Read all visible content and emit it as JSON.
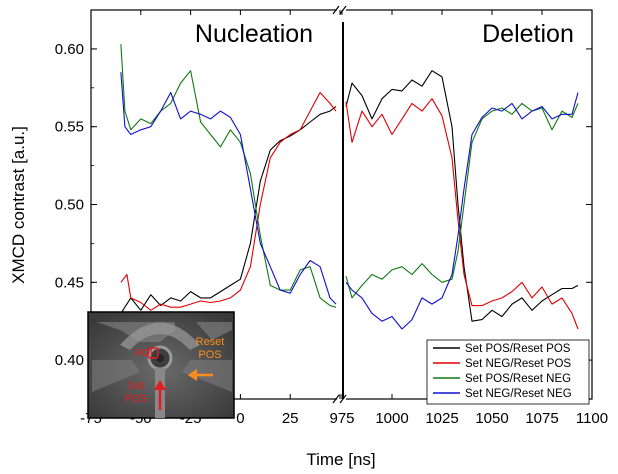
{
  "chart_data": {
    "type": "line",
    "xlabel": "Time [ns]",
    "ylabel": "XMCD contrast [a.u.]",
    "ylim": [
      0.375,
      0.625
    ],
    "y_ticks": [
      0.4,
      0.45,
      0.5,
      0.55,
      0.6
    ],
    "y_tick_labels": [
      "0.40",
      "0.45",
      "0.50",
      "0.55",
      "0.60"
    ],
    "axis_break": true,
    "panels": [
      {
        "label": "Nucleation",
        "xlim": [
          -75,
          50
        ],
        "x_ticks": [
          -75,
          -50,
          -25,
          0,
          25,
          50
        ],
        "x_tick_labels": [
          "-75",
          "-50",
          "-25",
          "0",
          "25",
          ""
        ]
      },
      {
        "label": "Deletion",
        "xlim": [
          975,
          1100
        ],
        "x_ticks": [
          975,
          1000,
          1025,
          1050,
          1075,
          1100
        ],
        "x_tick_labels": [
          "975",
          "1000",
          "1025",
          "1050",
          "1075",
          "1100"
        ]
      }
    ],
    "series": [
      {
        "name": "Set POS/Reset POS",
        "color": "#000000",
        "nucleation": {
          "x": [
            -60,
            -55,
            -50,
            -45,
            -40,
            -35,
            -30,
            -25,
            -20,
            -15,
            -10,
            -5,
            0,
            5,
            10,
            15,
            20,
            25,
            30,
            35,
            40,
            45,
            48
          ],
          "y": [
            0.43,
            0.44,
            0.432,
            0.442,
            0.435,
            0.44,
            0.438,
            0.444,
            0.44,
            0.44,
            0.444,
            0.448,
            0.452,
            0.475,
            0.515,
            0.535,
            0.541,
            0.544,
            0.548,
            0.553,
            0.558,
            0.56,
            0.563
          ]
        },
        "deletion": {
          "x": [
            977,
            980,
            985,
            990,
            995,
            1000,
            1005,
            1010,
            1015,
            1020,
            1025,
            1030,
            1033,
            1036,
            1040,
            1045,
            1050,
            1055,
            1060,
            1065,
            1070,
            1075,
            1080,
            1085,
            1090,
            1093
          ],
          "y": [
            0.563,
            0.578,
            0.57,
            0.555,
            0.568,
            0.574,
            0.573,
            0.58,
            0.576,
            0.586,
            0.582,
            0.55,
            0.5,
            0.46,
            0.425,
            0.426,
            0.432,
            0.428,
            0.436,
            0.44,
            0.432,
            0.438,
            0.442,
            0.446,
            0.446,
            0.448
          ]
        }
      },
      {
        "name": "Set NEG/Reset POS",
        "color": "#e00000",
        "nucleation": {
          "x": [
            -60,
            -57,
            -55,
            -50,
            -45,
            -40,
            -35,
            -30,
            -25,
            -20,
            -15,
            -10,
            -5,
            0,
            5,
            10,
            15,
            20,
            25,
            30,
            35,
            40,
            45,
            48
          ],
          "y": [
            0.45,
            0.455,
            0.44,
            0.437,
            0.432,
            0.436,
            0.434,
            0.434,
            0.436,
            0.438,
            0.437,
            0.438,
            0.44,
            0.445,
            0.46,
            0.5,
            0.53,
            0.54,
            0.545,
            0.548,
            0.56,
            0.572,
            0.565,
            0.56
          ]
        },
        "deletion": {
          "x": [
            977,
            980,
            985,
            990,
            995,
            1000,
            1005,
            1010,
            1015,
            1020,
            1025,
            1030,
            1033,
            1036,
            1040,
            1045,
            1050,
            1055,
            1060,
            1065,
            1070,
            1075,
            1080,
            1085,
            1090,
            1093
          ],
          "y": [
            0.566,
            0.54,
            0.56,
            0.55,
            0.558,
            0.545,
            0.555,
            0.565,
            0.56,
            0.568,
            0.557,
            0.53,
            0.49,
            0.455,
            0.435,
            0.435,
            0.438,
            0.44,
            0.444,
            0.45,
            0.44,
            0.447,
            0.436,
            0.44,
            0.43,
            0.42
          ]
        }
      },
      {
        "name": "Set POS/Reset NEG",
        "color": "#107a10",
        "nucleation": {
          "x": [
            -60,
            -58,
            -55,
            -50,
            -45,
            -40,
            -35,
            -30,
            -25,
            -20,
            -15,
            -10,
            -5,
            0,
            5,
            10,
            15,
            20,
            25,
            30,
            35,
            40,
            45,
            48
          ],
          "y": [
            0.603,
            0.56,
            0.548,
            0.555,
            0.552,
            0.56,
            0.565,
            0.578,
            0.586,
            0.553,
            0.545,
            0.537,
            0.548,
            0.54,
            0.52,
            0.48,
            0.448,
            0.445,
            0.445,
            0.458,
            0.46,
            0.44,
            0.435,
            0.434
          ]
        },
        "deletion": {
          "x": [
            977,
            980,
            985,
            990,
            995,
            1000,
            1005,
            1010,
            1015,
            1020,
            1025,
            1030,
            1033,
            1036,
            1040,
            1045,
            1050,
            1055,
            1060,
            1065,
            1070,
            1075,
            1080,
            1085,
            1090,
            1093
          ],
          "y": [
            0.454,
            0.44,
            0.448,
            0.455,
            0.452,
            0.458,
            0.46,
            0.455,
            0.462,
            0.455,
            0.45,
            0.452,
            0.47,
            0.5,
            0.54,
            0.555,
            0.56,
            0.562,
            0.558,
            0.565,
            0.56,
            0.562,
            0.548,
            0.56,
            0.556,
            0.565
          ]
        }
      },
      {
        "name": "Set NEG/Reset NEG",
        "color": "#1010d0",
        "nucleation": {
          "x": [
            -60,
            -58,
            -55,
            -50,
            -45,
            -40,
            -35,
            -30,
            -25,
            -20,
            -15,
            -10,
            -5,
            0,
            5,
            10,
            15,
            20,
            25,
            30,
            35,
            40,
            45,
            48
          ],
          "y": [
            0.585,
            0.55,
            0.545,
            0.548,
            0.55,
            0.56,
            0.572,
            0.555,
            0.56,
            0.558,
            0.555,
            0.56,
            0.556,
            0.545,
            0.51,
            0.475,
            0.46,
            0.445,
            0.443,
            0.455,
            0.464,
            0.46,
            0.44,
            0.436
          ]
        },
        "deletion": {
          "x": [
            977,
            980,
            985,
            990,
            995,
            1000,
            1005,
            1010,
            1015,
            1020,
            1025,
            1030,
            1033,
            1036,
            1040,
            1045,
            1050,
            1055,
            1060,
            1065,
            1070,
            1075,
            1080,
            1085,
            1090,
            1093
          ],
          "y": [
            0.45,
            0.445,
            0.44,
            0.43,
            0.425,
            0.428,
            0.42,
            0.426,
            0.44,
            0.436,
            0.44,
            0.455,
            0.48,
            0.51,
            0.545,
            0.556,
            0.562,
            0.56,
            0.565,
            0.555,
            0.56,
            0.563,
            0.555,
            0.558,
            0.558,
            0.572
          ]
        }
      }
    ],
    "legend_position": "bottom-right",
    "inset": {
      "description_labels": [
        "ROI",
        "Reset POS",
        "Set POS"
      ],
      "colors": {
        "roi": "#e02020",
        "reset": "#ff8c1a",
        "set": "#e02020"
      }
    }
  },
  "inset_labels": {
    "roi": "ROI",
    "reset_line1": "Reset",
    "reset_line2": "POS",
    "set_line1": "Set",
    "set_line2": "POS"
  }
}
